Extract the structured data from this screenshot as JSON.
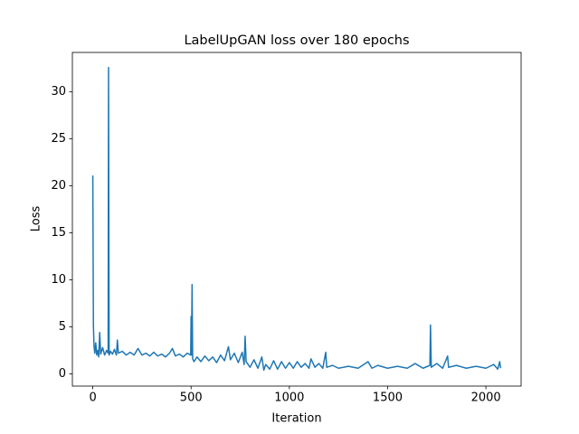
{
  "chart_data": {
    "type": "line",
    "title": "LabelUpGAN loss over 180 epochs",
    "x_label": "Iteration",
    "y_label": "Loss",
    "x": [
      0,
      3,
      6,
      10,
      15,
      20,
      25,
      30,
      35,
      40,
      50,
      60,
      70,
      78,
      80,
      83,
      90,
      100,
      110,
      120,
      125,
      130,
      150,
      170,
      190,
      210,
      230,
      250,
      270,
      290,
      310,
      330,
      350,
      370,
      390,
      405,
      420,
      440,
      460,
      480,
      498,
      500,
      502,
      505,
      508,
      515,
      530,
      550,
      570,
      590,
      610,
      630,
      650,
      670,
      690,
      700,
      720,
      740,
      760,
      770,
      775,
      780,
      800,
      820,
      840,
      860,
      870,
      880,
      900,
      920,
      940,
      960,
      980,
      1000,
      1020,
      1040,
      1060,
      1080,
      1100,
      1110,
      1130,
      1150,
      1170,
      1185,
      1190,
      1220,
      1250,
      1300,
      1350,
      1400,
      1420,
      1450,
      1500,
      1550,
      1600,
      1640,
      1680,
      1715,
      1718,
      1722,
      1750,
      1780,
      1805,
      1810,
      1850,
      1900,
      1950,
      2000,
      2040,
      2060,
      2070,
      2075
    ],
    "series": [
      {
        "color": "#1f77b4",
        "values": [
          21.1,
          5.2,
          3.0,
          2.2,
          3.3,
          2.0,
          2.5,
          1.8,
          4.4,
          2.1,
          2.8,
          2.0,
          2.5,
          2.2,
          32.6,
          2.0,
          2.4,
          2.1,
          2.6,
          2.0,
          3.6,
          2.2,
          2.4,
          2.0,
          2.3,
          2.0,
          2.7,
          2.0,
          2.2,
          1.9,
          2.3,
          1.9,
          2.1,
          1.8,
          2.2,
          2.7,
          1.9,
          2.1,
          1.8,
          2.2,
          2.0,
          6.1,
          2.0,
          9.5,
          1.6,
          1.3,
          1.8,
          1.3,
          1.9,
          1.4,
          1.8,
          1.2,
          2.0,
          1.4,
          2.9,
          1.5,
          2.2,
          1.2,
          2.3,
          1.0,
          4.0,
          1.3,
          0.7,
          1.5,
          0.6,
          1.8,
          0.4,
          1.0,
          0.5,
          1.4,
          0.5,
          1.3,
          0.6,
          1.2,
          0.6,
          1.3,
          0.7,
          1.1,
          0.6,
          1.6,
          0.7,
          1.1,
          0.6,
          2.3,
          0.7,
          0.9,
          0.6,
          0.8,
          0.6,
          1.3,
          0.6,
          0.9,
          0.6,
          0.8,
          0.6,
          1.1,
          0.6,
          0.9,
          5.2,
          0.7,
          1.1,
          0.6,
          1.9,
          0.7,
          0.9,
          0.6,
          0.8,
          0.6,
          1.0,
          0.5,
          1.3,
          0.6
        ]
      }
    ],
    "xlim": [
      -104,
      2179
    ],
    "ylim": [
      -1.3,
      34.2
    ],
    "xticks": [
      0,
      500,
      1000,
      1500,
      2000
    ],
    "yticks": [
      0,
      5,
      10,
      15,
      20,
      25,
      30
    ],
    "grid": false
  }
}
